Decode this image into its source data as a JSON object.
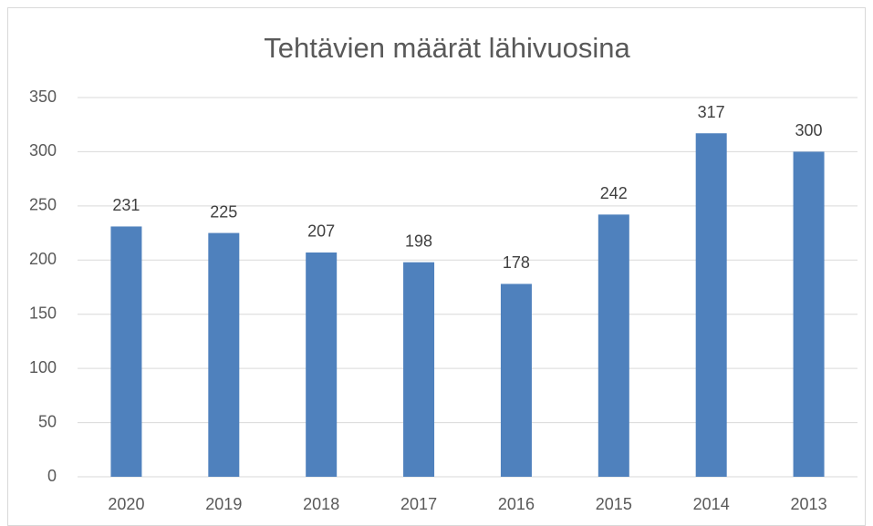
{
  "chart_data": {
    "type": "bar",
    "title": "Tehtävien määrät lähivuosina",
    "categories": [
      "2020",
      "2019",
      "2018",
      "2017",
      "2016",
      "2015",
      "2014",
      "2013"
    ],
    "values": [
      231,
      225,
      207,
      198,
      178,
      242,
      317,
      300
    ],
    "color": "#4f81bd",
    "ylim": [
      0,
      350
    ],
    "yticks": [
      0,
      50,
      100,
      150,
      200,
      250,
      300,
      350
    ],
    "grid": true
  }
}
